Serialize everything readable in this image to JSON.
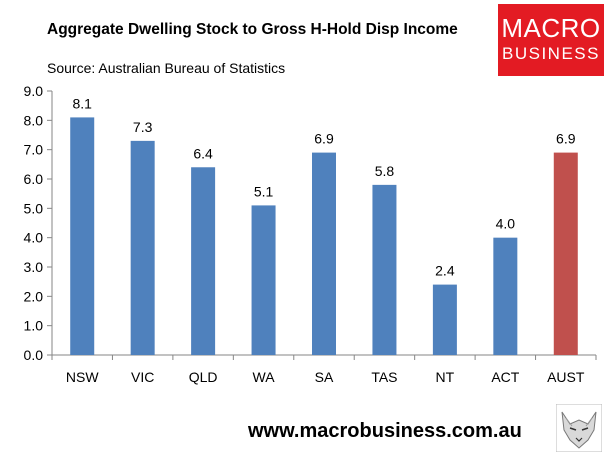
{
  "header": {
    "title": "Aggregate Dwelling Stock to Gross H-Hold Disp Income",
    "source": "Source: Australian Bureau of Statistics"
  },
  "logo": {
    "line1": "MACRO",
    "line2": "BUSINESS",
    "color": "#e31b23"
  },
  "footer": {
    "website": "www.macrobusiness.com.au",
    "mascot_icon": "wolf-icon"
  },
  "colors": {
    "bar": "#4f81bd",
    "highlight": "#c0504d"
  },
  "chart_data": {
    "type": "bar",
    "title": "Aggregate Dwelling Stock to Gross H-Hold Disp Income",
    "xlabel": "",
    "ylabel": "",
    "categories": [
      "NSW",
      "VIC",
      "QLD",
      "WA",
      "SA",
      "TAS",
      "NT",
      "ACT",
      "AUST"
    ],
    "values": [
      8.1,
      7.3,
      6.4,
      5.1,
      6.9,
      5.8,
      2.4,
      4.0,
      6.9
    ],
    "data_labels": [
      "8.1",
      "7.3",
      "6.4",
      "5.1",
      "6.9",
      "5.8",
      "2.4",
      "4.0",
      "6.9"
    ],
    "highlight_category": "AUST",
    "ylim": [
      0,
      9
    ],
    "yticks": [
      "0.0",
      "1.0",
      "2.0",
      "3.0",
      "4.0",
      "5.0",
      "6.0",
      "7.0",
      "8.0",
      "9.0"
    ],
    "grid": false,
    "legend": "none"
  }
}
